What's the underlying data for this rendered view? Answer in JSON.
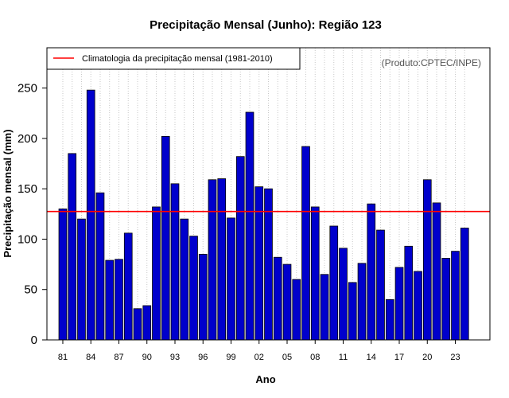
{
  "chart_data": {
    "type": "bar",
    "title": "Precipitação Mensal (Junho): Região 123",
    "xlabel": "Ano",
    "ylabel": "Precipitação mensal (mm)",
    "ylim": [
      0,
      290
    ],
    "yticks": [
      0,
      50,
      100,
      150,
      200,
      250
    ],
    "xlim": [
      1979.3,
      2026.7
    ],
    "grid": "vertical dotted, one line per year",
    "legend_position": "top-left",
    "credit": "(Produto:CPTEC/INPE)",
    "bar_color": "#0000cc",
    "climatology": {
      "label": "Climatologia da precipitação mensal (1981-2010)",
      "value": 127.5,
      "color": "#ff0000"
    },
    "x_tick_labels": [
      "81",
      "84",
      "87",
      "90",
      "93",
      "96",
      "99",
      "02",
      "05",
      "08",
      "11",
      "14",
      "17",
      "20",
      "23"
    ],
    "x_tick_years": [
      1981,
      1984,
      1987,
      1990,
      1993,
      1996,
      1999,
      2002,
      2005,
      2008,
      2011,
      2014,
      2017,
      2020,
      2023
    ],
    "years": [
      1981,
      1982,
      1983,
      1984,
      1985,
      1986,
      1987,
      1988,
      1989,
      1990,
      1991,
      1992,
      1993,
      1994,
      1995,
      1996,
      1997,
      1998,
      1999,
      2000,
      2001,
      2002,
      2003,
      2004,
      2005,
      2006,
      2007,
      2008,
      2009,
      2010,
      2011,
      2012,
      2013,
      2014,
      2015,
      2016,
      2017,
      2018,
      2019,
      2020,
      2021,
      2022,
      2023,
      2024
    ],
    "values": [
      130,
      185,
      120,
      248,
      146,
      79,
      80,
      106,
      31,
      34,
      132,
      202,
      155,
      120,
      103,
      85,
      159,
      160,
      121,
      182,
      226,
      152,
      150,
      82,
      75,
      60,
      192,
      132,
      65,
      113,
      91,
      57,
      76,
      135,
      109,
      40,
      72,
      93,
      68,
      159,
      136,
      81,
      88,
      111
    ]
  }
}
